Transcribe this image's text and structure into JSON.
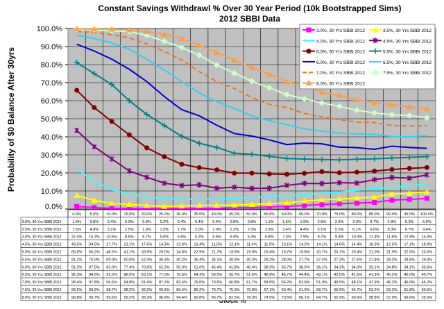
{
  "chart_data": {
    "type": "line",
    "title": "Constant Savings Withdrawl % Over 30 Year Period (10k Bootstrapped Sims)",
    "subtitle": "2012 SBBI Data",
    "xlabel": "Stock %",
    "ylabel": "Probability of $0 Balance After 30yrs",
    "ylim": [
      0,
      100
    ],
    "y_ticks": [
      "0.0%",
      "10.0%",
      "20.0%",
      "30.0%",
      "40.0%",
      "50.0%",
      "60.0%",
      "70.0%",
      "80.0%",
      "90.0%",
      "100.0%"
    ],
    "grid": true,
    "legend_position": "top-right",
    "categories": [
      "0.0%",
      "5.0%",
      "10.0%",
      "15.0%",
      "20.0%",
      "25.0%",
      "30.0%",
      "35.0%",
      "40.0%",
      "45.0%",
      "50.0%",
      "55.0%",
      "60.0%",
      "65.0%",
      "70.0%",
      "75.0%",
      "80.0%",
      "85.0%",
      "90.0%",
      "95.0%",
      "100.0%"
    ],
    "series": [
      {
        "name": "3.0%, 30 Yrs SBBI 2012",
        "color": "#ff00ff",
        "marker": "square",
        "values": [
          1.4,
          0.8,
          0.4,
          0.3,
          0.3,
          0.2,
          0.4,
          0.4,
          0.4,
          0.8,
          0.8,
          1.1,
          1.5,
          1.9,
          2.5,
          2.9,
          3.3,
          3.7,
          4.9,
          5.3,
          5.9
        ]
      },
      {
        "name": "3.5%, 30 Yrs SBBI 2012",
        "color": "#ffff00",
        "marker": "triangle",
        "values": [
          7.5,
          4.8,
          3.1,
          2.5,
          1.9,
          1.5,
          1.7,
          2.0,
          2.0,
          2.2,
          2.5,
          2.9,
          3.4,
          4.4,
          5.1,
          5.5,
          6.1,
          6.6,
          8.3,
          8.7,
          9.4
        ]
      },
      {
        "name": "4.0%, 30 Yrs SBBI 2012",
        "color": "#33ffff",
        "marker": "none",
        "values": [
          22.4,
          15.3,
          10.6,
          8.5,
          6.7,
          5.6,
          5.6,
          5.2,
          5.6,
          5.9,
          6.3,
          6.8,
          7.3,
          7.9,
          8.7,
          9.4,
          10.4,
          11.4,
          11.8,
          12.9,
          14.0
        ]
      },
      {
        "name": "4.5%, 30 Yrs SBBI 2012",
        "color": "#800080",
        "marker": "star",
        "values": [
          43.5,
          34.5,
          27.7,
          21.1,
          17.6,
          14.3,
          13.0,
          13.4,
          11.5,
          12.1,
          11.4,
          11.5,
          13.1,
          14.2,
          14.1,
          14.6,
          14.4,
          16.3,
          17.5,
          17.1,
          18.9
        ]
      },
      {
        "name": "5.0%, 30 Yrs SBBI 2012",
        "color": "#800000",
        "marker": "circle",
        "values": [
          65.8,
          56.2,
          48.5,
          41.1,
          33.9,
          29.0,
          24.8,
          22.9,
          21.7,
          19.9,
          19.9,
          19.4,
          19.2,
          19.8,
          20.7,
          20.1,
          20.4,
          21.0,
          21.9,
          22.5,
          23.0
        ]
      },
      {
        "name": "5.5%, 30 Yrs SBBI 2012",
        "color": "#008080",
        "marker": "plus",
        "values": [
          81.1,
          75.0,
          69.0,
          60.0,
          52.4,
          46.3,
          40.2,
          36.4,
          34.1,
          30.9,
          30.3,
          29.2,
          28.0,
          27.7,
          27.4,
          27.2,
          27.6,
          27.8,
          28.2,
          28.6,
          29.0
        ]
      },
      {
        "name": "6.0%, 30 Yrs SBBI 2012",
        "color": "#0000cc",
        "marker": "none",
        "values": [
          91.3,
          87.5,
          83.0,
          77.4,
          70.6,
          62.3,
          55.0,
          51.6,
          46.4,
          41.8,
          40.4,
          38.3,
          35.7,
          36.5,
          36.1,
          34.3,
          34.0,
          33.1,
          34.8,
          34.1,
          33.6
        ]
      },
      {
        "name": "6.5%, 30 Yrs SBBI 2012",
        "color": "#33ccee",
        "marker": "none",
        "values": [
          96.3,
          94.5,
          92.0,
          88.5,
          83.1,
          77.0,
          70.6,
          64.3,
          59.5,
          55.7,
          51.6,
          48.9,
          46.7,
          44.4,
          43.1,
          42.0,
          41.6,
          41.3,
          40.2,
          40.0,
          40.7
        ]
      },
      {
        "name": "7.0%, 30 Yrs SBBI 2012",
        "color": "#e87722",
        "marker": "none",
        "dashed": true,
        "values": [
          98.4,
          97.8,
          96.6,
          94.8,
          91.4,
          87.2,
          82.6,
          76.0,
          70.6,
          66.8,
          61.7,
          58.0,
          56.2,
          52.9,
          51.0,
          49.5,
          48.1,
          47.9,
          46.2,
          46.0,
          46.2
        ]
      },
      {
        "name": "7.5%, 30 Yrs SBBI 2012",
        "color": "#ccffcc",
        "marker": "diamond",
        "values": [
          99.5,
          99.2,
          98.7,
          98.2,
          96.2,
          92.9,
          89.4,
          85.2,
          79.7,
          75.3,
          70.8,
          67.1,
          63.4,
          61.0,
          58.7,
          56.9,
          54.7,
          53.2,
          52.2,
          51.8,
          50.5
        ]
      },
      {
        "name": "8.0%, 30 Yrs SBBI 2012",
        "color": "#f5a050",
        "marker": "triangle",
        "values": [
          99.8,
          99.7,
          99.6,
          99.2,
          98.3,
          96.8,
          94.4,
          90.8,
          86.7,
          82.5,
          78.3,
          74.5,
          70.5,
          68.1,
          64.7,
          62.9,
          60.6,
          58.8,
          57.9,
          56.6,
          55.5
        ]
      }
    ]
  }
}
